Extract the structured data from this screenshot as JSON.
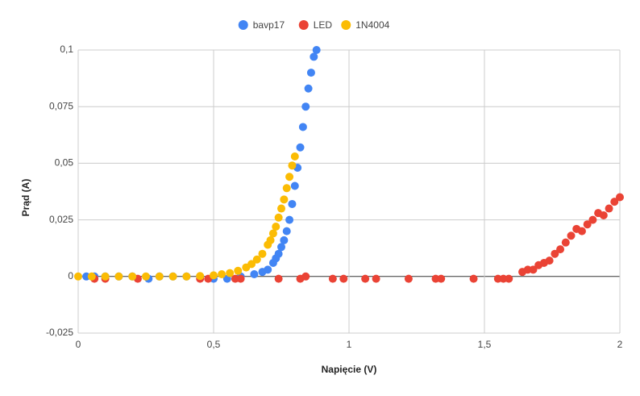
{
  "chart_data": {
    "type": "scatter",
    "x_label": "Napięcie (V)",
    "y_label": "Prąd (A)",
    "xlim": [
      0,
      2
    ],
    "xticks": [
      0,
      {
        "value": 0.5,
        "label": "0,5"
      },
      1,
      {
        "value": 1.5,
        "label": "1,5"
      },
      2
    ],
    "ylim": [
      -0.025,
      0.1
    ],
    "yticks": [
      {
        "value": -0.025,
        "label": "-0,025"
      },
      0,
      {
        "value": 0.025,
        "label": "0,025"
      },
      {
        "value": 0.05,
        "label": "0,05"
      },
      {
        "value": 0.075,
        "label": "0,075"
      },
      {
        "value": 0.1,
        "label": "0,1"
      }
    ],
    "grid": true,
    "legend": "top",
    "series": [
      {
        "name": "bavp17",
        "color": "#4285f4",
        "x": [
          0.03,
          0.06,
          0.1,
          0.15,
          0.2,
          0.26,
          0.3,
          0.35,
          0.4,
          0.45,
          0.5,
          0.55,
          0.6,
          0.65,
          0.68,
          0.7,
          0.72,
          0.73,
          0.74,
          0.75,
          0.76,
          0.77,
          0.78,
          0.79,
          0.8,
          0.81,
          0.82,
          0.83,
          0.84,
          0.85,
          0.86,
          0.87,
          0.88
        ],
        "values": [
          0,
          0,
          0,
          0,
          0,
          -0.001,
          0,
          0,
          0,
          0,
          -0.001,
          -0.001,
          0,
          0.001,
          0.002,
          0.003,
          0.006,
          0.008,
          0.01,
          0.013,
          0.016,
          0.02,
          0.025,
          0.032,
          0.04,
          0.048,
          0.057,
          0.066,
          0.075,
          0.083,
          0.09,
          0.097,
          0.1
        ]
      },
      {
        "name": "LED",
        "color": "#ea4335",
        "x": [
          0.06,
          0.1,
          0.22,
          0.45,
          0.48,
          0.58,
          0.6,
          0.74,
          0.82,
          0.84,
          0.94,
          0.98,
          1.06,
          1.1,
          1.22,
          1.32,
          1.34,
          1.46,
          1.55,
          1.57,
          1.59,
          1.64,
          1.66,
          1.68,
          1.7,
          1.72,
          1.74,
          1.76,
          1.78,
          1.8,
          1.82,
          1.84,
          1.86,
          1.88,
          1.9,
          1.92,
          1.94,
          1.96,
          1.98,
          2
        ],
        "values": [
          -0.001,
          -0.001,
          -0.001,
          -0.001,
          -0.001,
          -0.001,
          -0.001,
          -0.001,
          -0.001,
          0,
          -0.001,
          -0.001,
          -0.001,
          -0.001,
          -0.001,
          -0.001,
          -0.001,
          -0.001,
          -0.001,
          -0.001,
          -0.001,
          0.002,
          0.003,
          0.003,
          0.005,
          0.006,
          0.007,
          0.01,
          0.012,
          0.015,
          0.018,
          0.021,
          0.02,
          0.023,
          0.025,
          0.028,
          0.027,
          0.03,
          0.033,
          0.035
        ]
      },
      {
        "name": "1N4004",
        "color": "#fbbc04",
        "x": [
          0,
          0.05,
          0.1,
          0.15,
          0.2,
          0.25,
          0.3,
          0.35,
          0.4,
          0.45,
          0.5,
          0.53,
          0.56,
          0.59,
          0.62,
          0.64,
          0.66,
          0.68,
          0.7,
          0.71,
          0.72,
          0.73,
          0.74,
          0.75,
          0.76,
          0.77,
          0.78,
          0.79,
          0.8
        ],
        "values": [
          0,
          0,
          0,
          0,
          0,
          0,
          0,
          0,
          0,
          0.0002,
          0.0005,
          0.001,
          0.0015,
          0.0025,
          0.004,
          0.0055,
          0.0075,
          0.01,
          0.014,
          0.016,
          0.019,
          0.022,
          0.026,
          0.03,
          0.034,
          0.039,
          0.044,
          0.049,
          0.053
        ]
      }
    ]
  }
}
